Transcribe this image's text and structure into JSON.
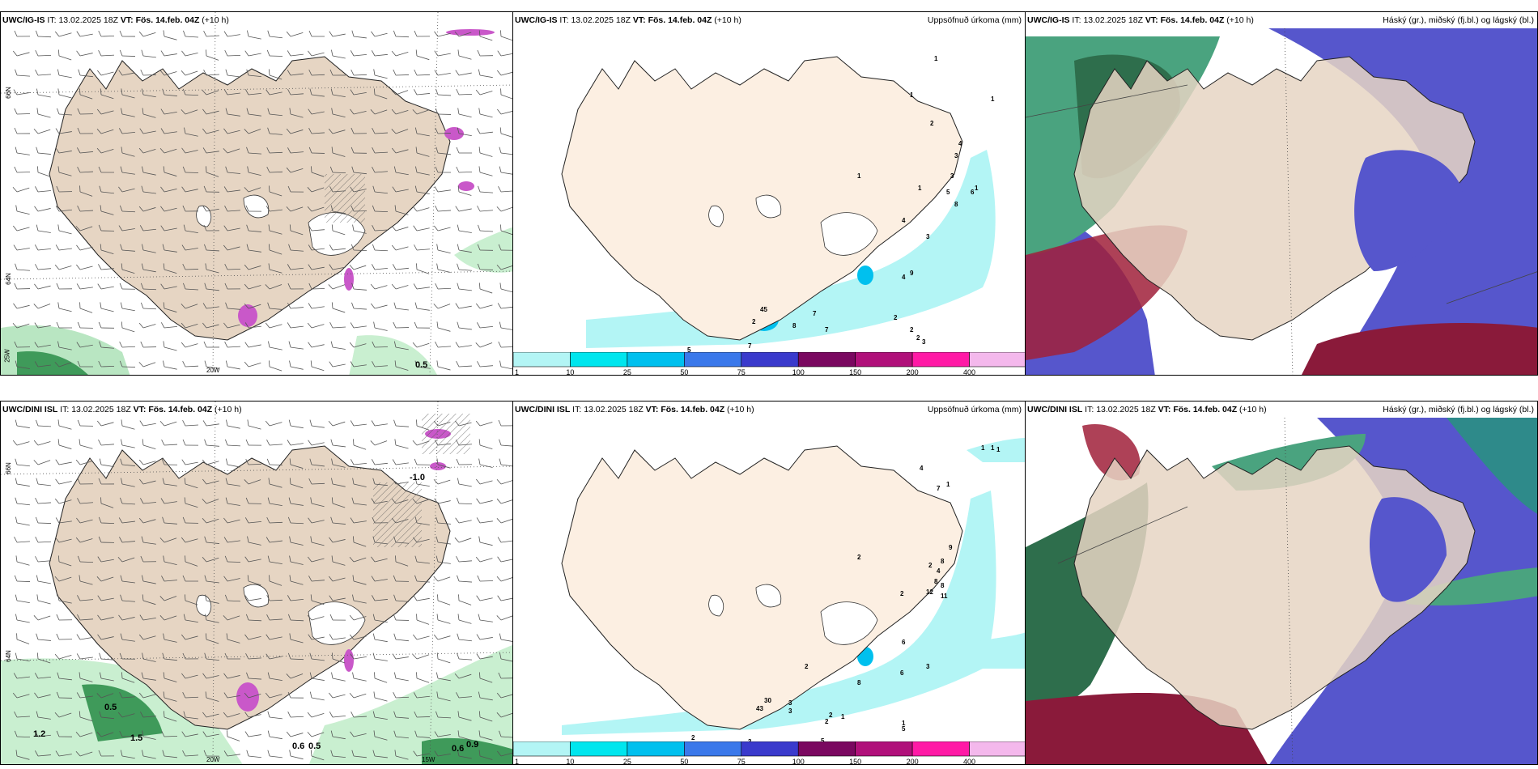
{
  "rows": [
    {
      "model": "UWC/IG-IS",
      "it_label": "IT:",
      "it_value": "13.02.2025 18Z",
      "vt_label": "VT:",
      "vt_value": "Fös. 14.feb. 04Z",
      "lead": "(+10 h)"
    },
    {
      "model": "UWC/DINI ISL",
      "it_label": "IT:",
      "it_value": "13.02.2025 18Z",
      "vt_label": "VT:",
      "vt_value": "Fös. 14.feb. 04Z",
      "lead": "(+10 h)"
    }
  ],
  "precip_title": "Uppsöfnuð úrkoma (mm)",
  "cloud_title": "Háský (gr.), miðský (fj.bl.) og lágský (bl.)",
  "legend": {
    "bins": [
      "1",
      "10",
      "25",
      "50",
      "75",
      "100",
      "150",
      "200",
      "400"
    ],
    "colors": [
      "#b3f5f5",
      "#00e6ee",
      "#00c0ee",
      "#3a78ea",
      "#3a3acc",
      "#7a0860",
      "#b0107a",
      "#ff1aa6",
      "#f4b8ec"
    ]
  },
  "axes_top": {
    "lat1": "66N",
    "lat2": "64N",
    "lon1": "25W",
    "lon2": "20W"
  },
  "axes_bottom": {
    "lat1": "66N",
    "lat2": "64N",
    "lon1": "20W",
    "lon2": "15W"
  },
  "wind_values_top": [
    "0.5"
  ],
  "wind_values_bottom": [
    "-1.0",
    "0.5",
    "1.2",
    "1.5",
    "0.6",
    "0.5",
    "0.6",
    "0.9"
  ],
  "precip_values_top": [
    "1",
    "1",
    "2",
    "1",
    "4",
    "3",
    "1",
    "3",
    "5",
    "6",
    "8",
    "1",
    "1",
    "4",
    "3",
    "9",
    "4",
    "45",
    "2",
    "8",
    "7",
    "7",
    "2",
    "2",
    "2",
    "3",
    "5",
    "7"
  ],
  "precip_values_bottom": [
    "1",
    "1",
    "1",
    "4",
    "7",
    "1",
    "2",
    "9",
    "8",
    "4",
    "2",
    "8",
    "8",
    "12",
    "11",
    "2",
    "6",
    "3",
    "6",
    "8",
    "2",
    "30",
    "43",
    "3",
    "3",
    "2",
    "2",
    "1",
    "1",
    "1",
    "5",
    "5",
    "3",
    "2"
  ],
  "colors": {
    "land": "#e6d5c3",
    "land_light": "#fcefe2",
    "snow": "#ffffff",
    "cyan": "#b3f5f5",
    "green": "#6fc98b",
    "blue": "#5656cc",
    "red": "#a0203a"
  }
}
